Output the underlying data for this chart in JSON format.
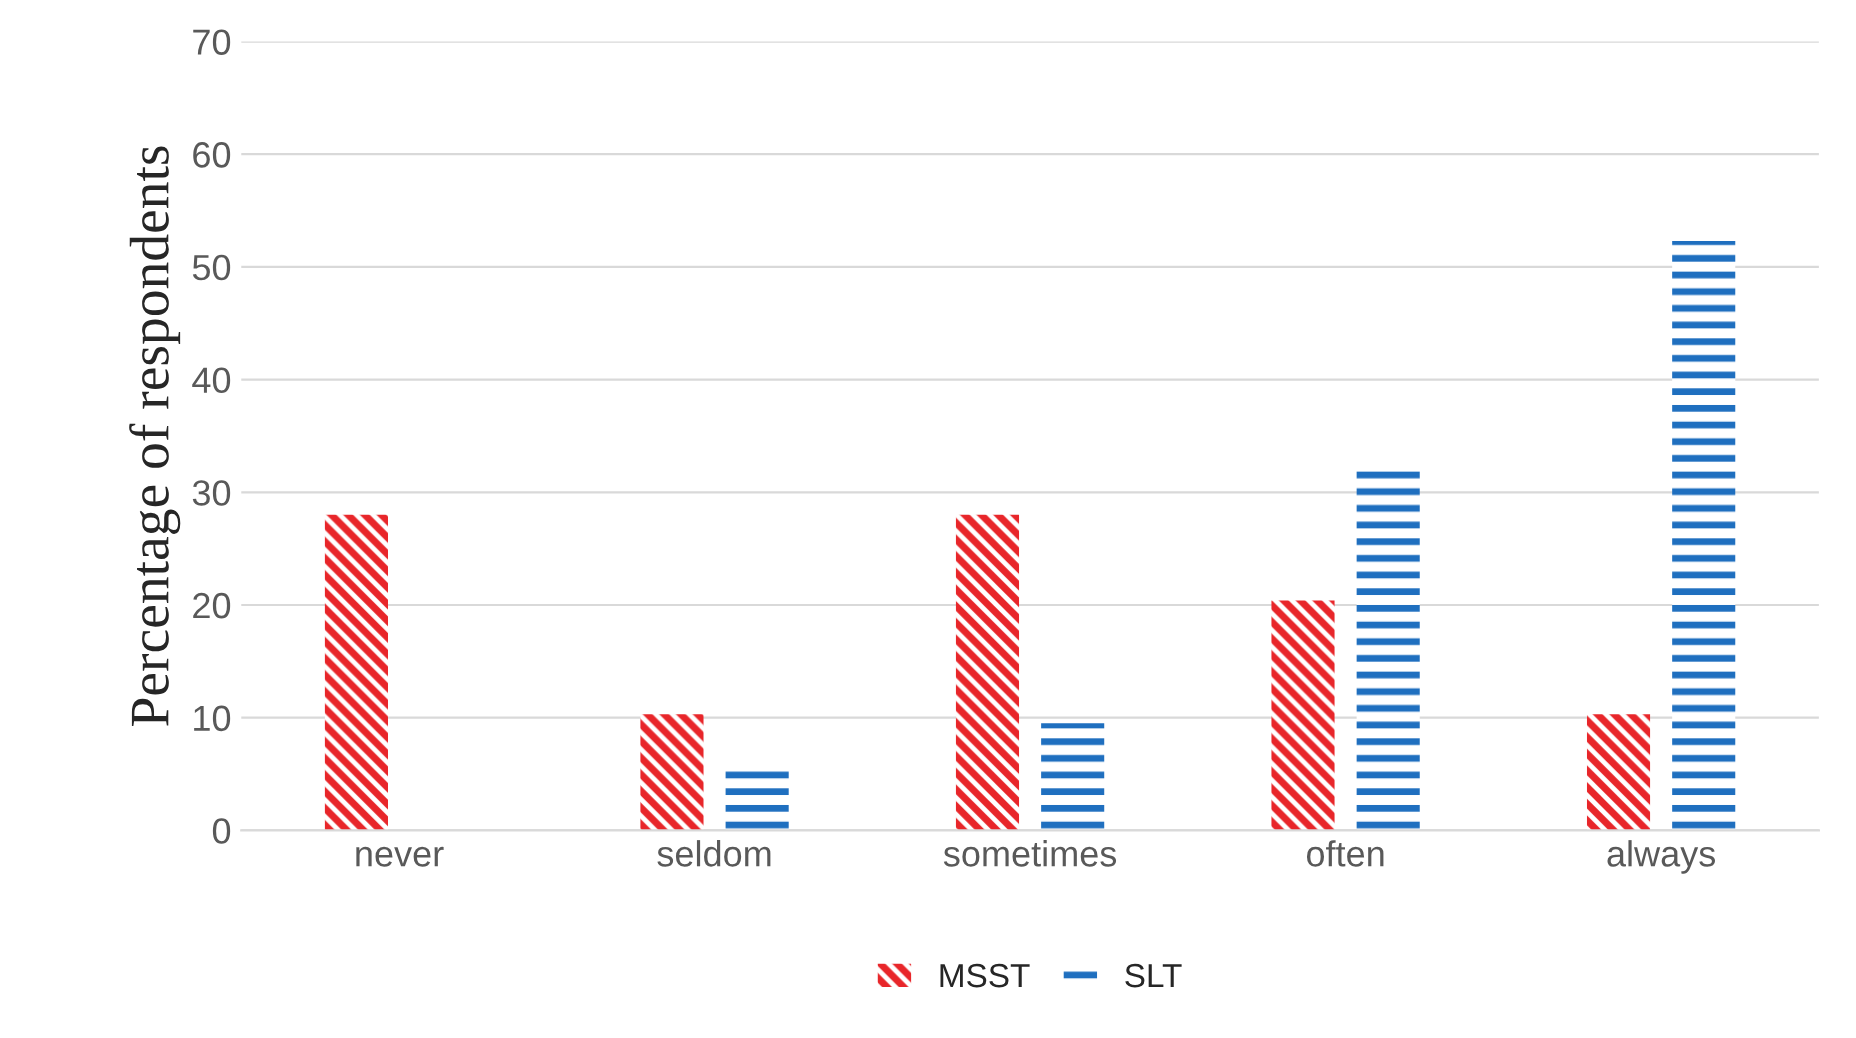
{
  "chart_data": {
    "type": "bar",
    "ylabel": "Percentage of respondents",
    "categories": [
      "never",
      "seldom",
      "sometimes",
      "often",
      "always"
    ],
    "series": [
      {
        "name": "MSST",
        "color": "#e8262a",
        "values": [
          28,
          10.3,
          28,
          20.4,
          10.3
        ]
      },
      {
        "name": "SLT",
        "color": "#1f6fbf",
        "values": [
          null,
          5.4,
          9.5,
          32.3,
          52.3
        ]
      }
    ],
    "ylim": [
      0,
      70
    ],
    "yticks": [
      0,
      10,
      20,
      30,
      40,
      50,
      60,
      70
    ],
    "grid": "y",
    "legend": "bottom"
  }
}
